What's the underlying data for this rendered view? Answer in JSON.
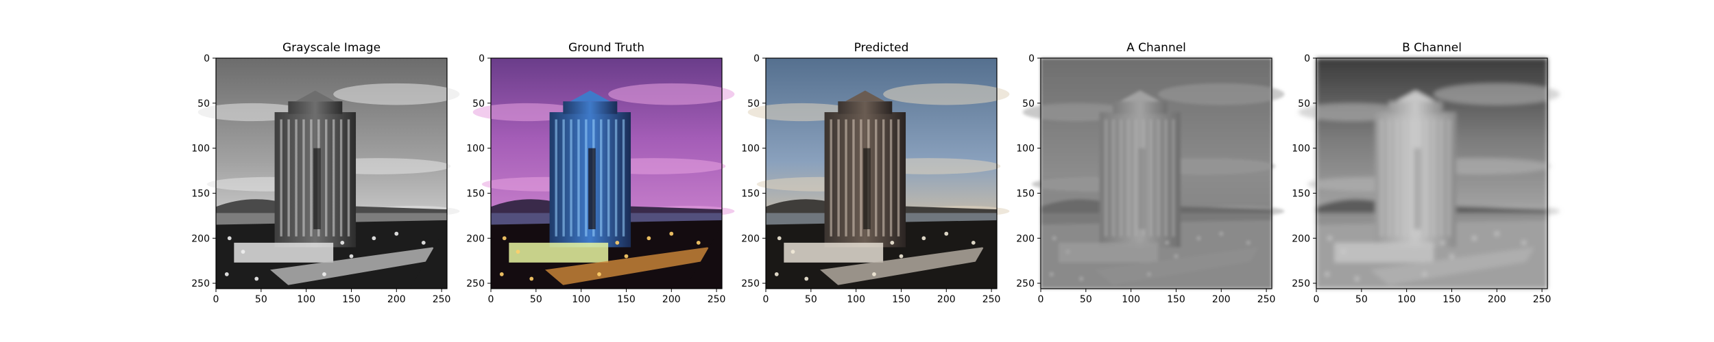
{
  "figure": {
    "background": "#ffffff"
  },
  "chart_data": [
    {
      "type": "image",
      "title": "Grayscale Image",
      "image_description": "grayscale photo of a tall office tower with a cloudy sky and city lights",
      "palette": "gray",
      "xlim": [
        0,
        256
      ],
      "ylim": [
        256,
        0
      ],
      "xticks": [
        0,
        50,
        100,
        150,
        200,
        250
      ],
      "yticks": [
        0,
        50,
        100,
        150,
        200,
        250
      ]
    },
    {
      "type": "image",
      "title": "Ground Truth",
      "image_description": "color photo of the office tower lit blue and green under a pink and purple dusk sky",
      "palette": "truth",
      "xlim": [
        0,
        256
      ],
      "ylim": [
        256,
        0
      ],
      "xticks": [
        0,
        50,
        100,
        150,
        200,
        250
      ],
      "yticks": [
        0,
        50,
        100,
        150,
        200,
        250
      ]
    },
    {
      "type": "image",
      "title": "Predicted",
      "image_description": "colorized prediction of the office tower with a muted blue and beige sky",
      "palette": "pred",
      "xlim": [
        0,
        256
      ],
      "ylim": [
        256,
        0
      ],
      "xticks": [
        0,
        50,
        100,
        150,
        200,
        250
      ],
      "yticks": [
        0,
        50,
        100,
        150,
        200,
        250
      ]
    },
    {
      "type": "image",
      "title": "A Channel",
      "image_description": "blurry grayscale A channel map of the tower",
      "palette": "achan",
      "xlim": [
        0,
        256
      ],
      "ylim": [
        256,
        0
      ],
      "xticks": [
        0,
        50,
        100,
        150,
        200,
        250
      ],
      "yticks": [
        0,
        50,
        100,
        150,
        200,
        250
      ]
    },
    {
      "type": "image",
      "title": "B Channel",
      "image_description": "blurry grayscale B channel map of the tower",
      "palette": "bchan",
      "xlim": [
        0,
        256
      ],
      "ylim": [
        256,
        0
      ],
      "xticks": [
        0,
        50,
        100,
        150,
        200,
        250
      ],
      "yticks": [
        0,
        50,
        100,
        150,
        200,
        250
      ]
    }
  ]
}
